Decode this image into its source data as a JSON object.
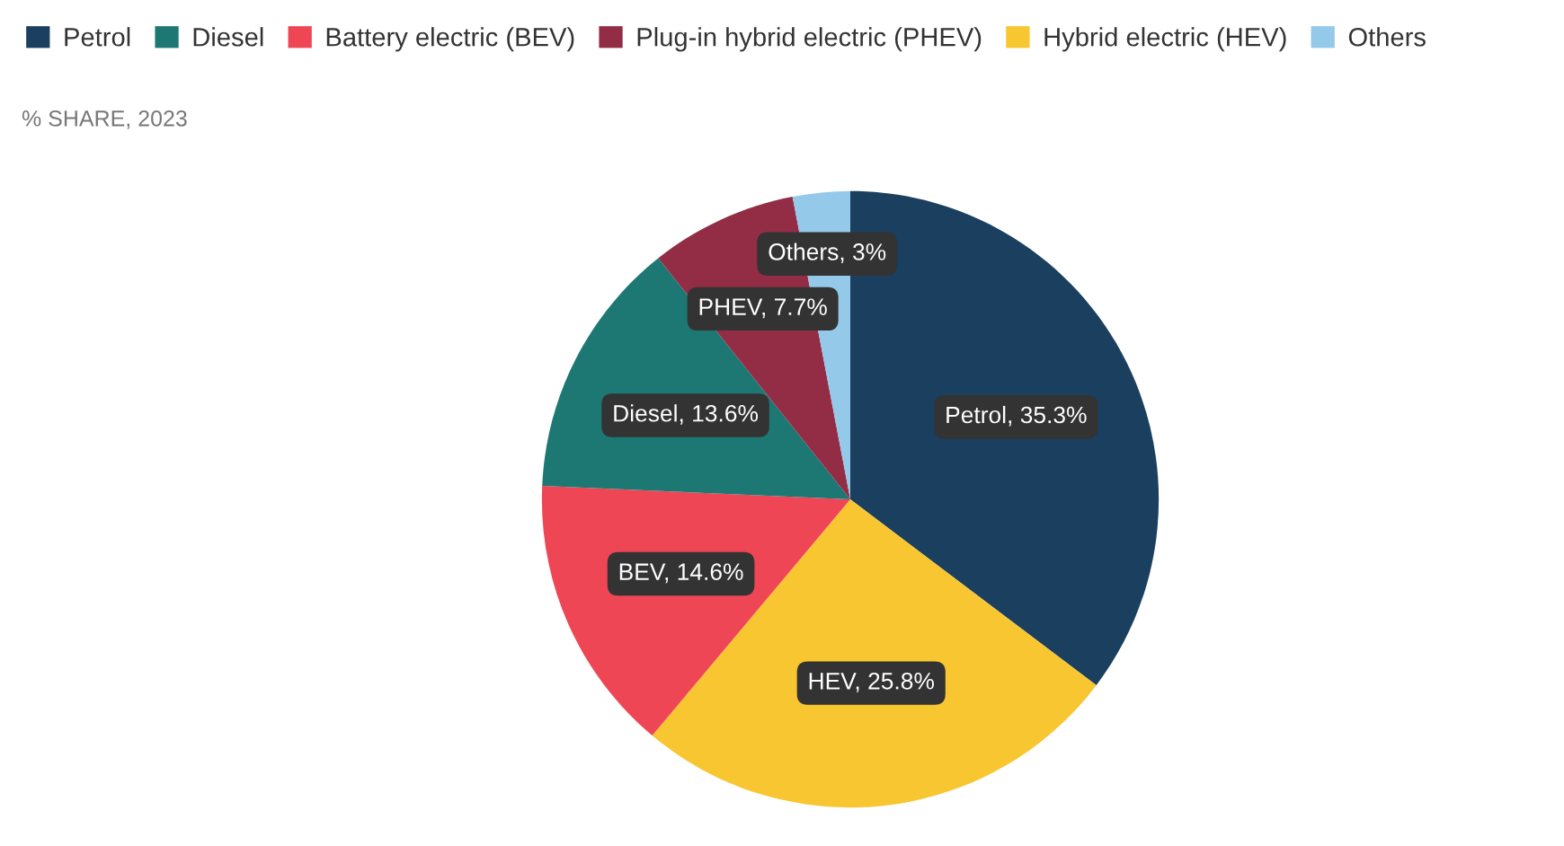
{
  "chart_data": {
    "type": "pie",
    "subtitle": "% SHARE, 2023",
    "categories": [
      "Petrol",
      "Hybrid electric (HEV)",
      "Battery electric (BEV)",
      "Diesel",
      "Plug-in hybrid electric (PHEV)",
      "Others"
    ],
    "values": [
      35.3,
      25.8,
      14.6,
      13.6,
      7.7,
      3
    ],
    "colors": [
      "#1b3f5e",
      "#f8c630",
      "#ee4655",
      "#1d7874",
      "#922d45",
      "#94c9ea"
    ],
    "value_labels": [
      "Petrol, 35.3%",
      "HEV, 25.8%",
      "BEV, 14.6%",
      "Diesel, 13.6%",
      "PHEV, 7.7%",
      "Others, 3%"
    ],
    "legend": "top left"
  }
}
